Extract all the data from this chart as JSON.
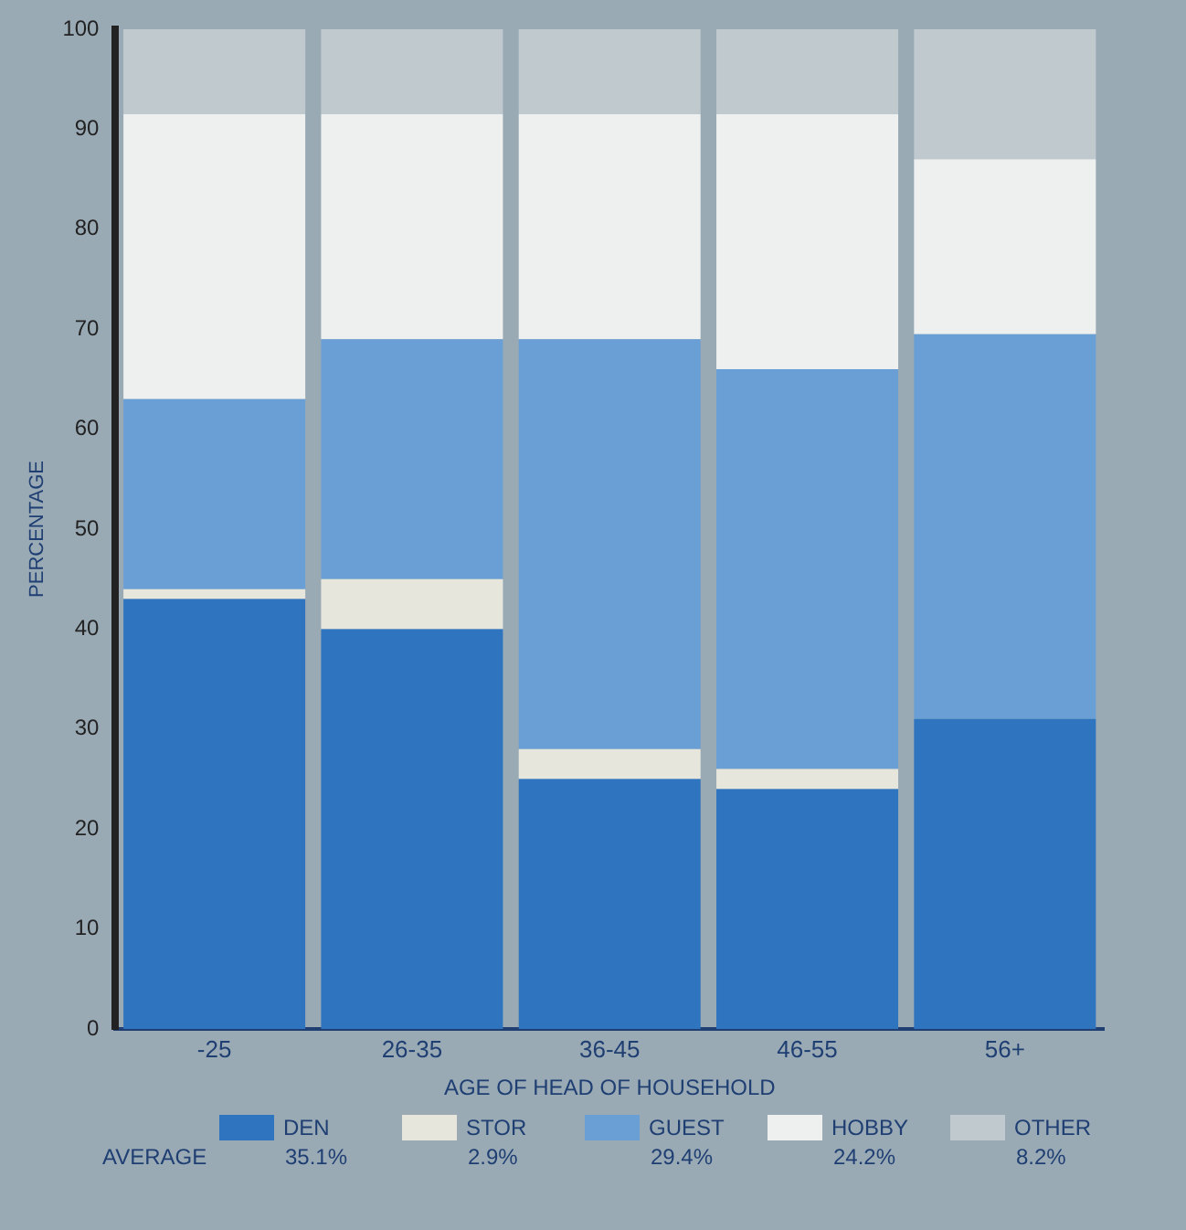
{
  "chart_data": {
    "type": "bar",
    "stacked": true,
    "xlabel": "AGE OF HEAD OF HOUSEHOLD",
    "ylabel": "PERCENTAGE",
    "categories": [
      "-25",
      "26-35",
      "36-45",
      "46-55",
      "56+"
    ],
    "series": [
      {
        "name": "DEN",
        "color": "#2f74bf",
        "values": [
          43,
          40,
          25,
          24,
          31
        ]
      },
      {
        "name": "STOR",
        "color": "#e6e6dc",
        "values": [
          1,
          5,
          3,
          2,
          0
        ]
      },
      {
        "name": "GUEST",
        "color": "#6a9fd6",
        "values": [
          19,
          24,
          41,
          40,
          38.5
        ]
      },
      {
        "name": "HOBBY",
        "color": "#eef0ef",
        "values": [
          28.5,
          22.5,
          22.5,
          25.5,
          17.5
        ]
      },
      {
        "name": "OTHER",
        "color": "#c0c9ce",
        "values": [
          8.5,
          8.5,
          8.5,
          8.5,
          13
        ]
      }
    ],
    "ylim": [
      0,
      100
    ],
    "yticks": [
      0,
      10,
      20,
      30,
      40,
      50,
      60,
      70,
      80,
      90,
      100
    ],
    "grid": false,
    "legend": "bottom",
    "annotations": [
      "AVERAGE",
      "35.1%",
      "2.9%",
      "29.4%",
      "24.2%",
      "8.2%"
    ]
  }
}
